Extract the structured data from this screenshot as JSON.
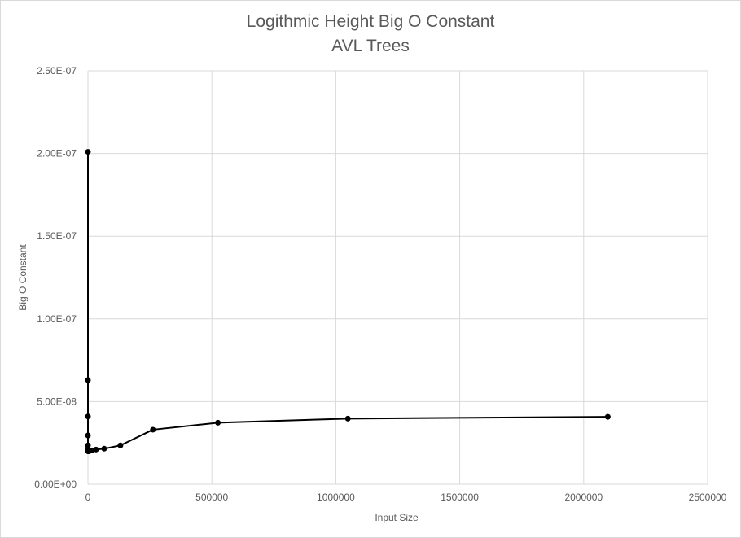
{
  "chart_data": {
    "type": "scatter",
    "title": "Logithmic Height Big O Constant",
    "subtitle": "AVL Trees",
    "xlabel": "Input Size",
    "ylabel": "Big O Constant",
    "xlim": [
      0,
      2500000
    ],
    "ylim": [
      0,
      2.5e-07
    ],
    "x_ticks": [
      0,
      500000,
      1000000,
      1500000,
      2000000,
      2500000
    ],
    "x_tick_labels": [
      "0",
      "500000",
      "1000000",
      "1500000",
      "2000000",
      "2500000"
    ],
    "y_ticks": [
      0,
      5e-08,
      1e-07,
      1.5e-07,
      2e-07,
      2.5e-07
    ],
    "y_tick_labels": [
      "0.00E+00",
      "5.00E-08",
      "1.00E-07",
      "1.50E-07",
      "2.00E-07",
      "2.50E-07"
    ],
    "grid": true,
    "legend": "none",
    "line_color": "#000000",
    "grid_color": "#d9d9d9",
    "series": [
      {
        "x": [
          2,
          4,
          8,
          16,
          32,
          64,
          128,
          256,
          512,
          1024,
          2048,
          4096,
          8192,
          16384,
          32768,
          65536,
          131072,
          262144,
          524288,
          1048576,
          2097152
        ],
        "y": [
          2.01e-07,
          6.3e-08,
          4.1e-08,
          2.95e-08,
          2.35e-08,
          2.15e-08,
          2.05e-08,
          2e-08,
          2e-08,
          2e-08,
          2e-08,
          2e-08,
          2.02e-08,
          2.05e-08,
          2.1e-08,
          2.15e-08,
          2.35e-08,
          3.3e-08,
          3.72e-08,
          3.97e-08,
          4.08e-08
        ]
      }
    ]
  }
}
